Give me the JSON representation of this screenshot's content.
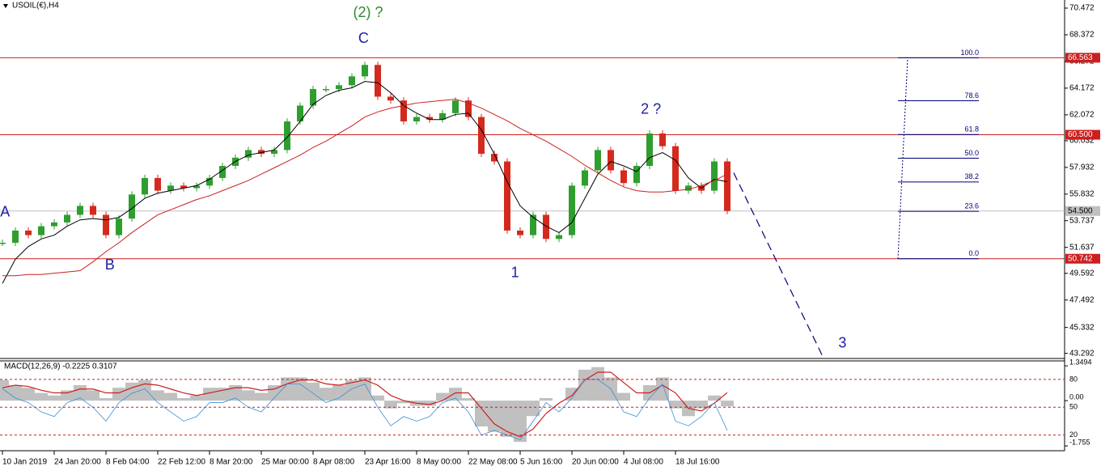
{
  "chart_data": [
    {
      "type": "line",
      "title": "USOIL(€),H4",
      "categories": [
        "10 Jan 2019",
        null,
        null,
        null,
        "24 Jan 20:00",
        null,
        null,
        null,
        "8 Feb 04:00",
        null,
        null,
        null,
        "22 Feb 12:00",
        null,
        null,
        null,
        "8 Mar 20:00",
        null,
        null,
        null,
        "25 Mar 00:00",
        null,
        null,
        null,
        "8 Apr 08:00",
        null,
        null,
        null,
        "23 Apr 16:00",
        null,
        null,
        null,
        "8 May 00:00",
        null,
        null,
        null,
        "22 May 08:00",
        null,
        null,
        null,
        "5 Jun 16:00",
        null,
        null,
        null,
        "20 Jun 00:00",
        null,
        null,
        null,
        "4 Jul 08:00",
        null,
        null,
        null,
        "18 Jul 16:00",
        null,
        null,
        null,
        null
      ],
      "series": [
        {
          "style": "candles",
          "color": "#2f9e2f",
          "down_color": "#d42a1e",
          "values": [
            52.0,
            52.96,
            52.6,
            53.3,
            53.6,
            54.2,
            54.9,
            54.2,
            52.6,
            53.9,
            55.8,
            57.1,
            56.1,
            56.5,
            56.3,
            56.5,
            57.1,
            58.05,
            58.7,
            59.3,
            59.0,
            59.3,
            61.55,
            62.8,
            64.1,
            64.1,
            64.4,
            65.1,
            66.0,
            63.5,
            63.2,
            61.55,
            61.9,
            61.7,
            62.2,
            63.2,
            61.9,
            59.0,
            58.4,
            52.96,
            52.6,
            54.2,
            52.3,
            52.6,
            56.5,
            57.7,
            59.3,
            57.7,
            56.7,
            58.05,
            60.6,
            59.6,
            56.1,
            56.5,
            56.1,
            58.4,
            54.5
          ]
        },
        {
          "style": "line",
          "color": "#000000",
          "values": [
            48.8,
            50.7,
            51.7,
            52.3,
            52.6,
            53.3,
            53.8,
            53.9,
            53.8,
            54.0,
            54.7,
            55.5,
            55.9,
            56.1,
            56.3,
            56.5,
            57.0,
            57.7,
            58.4,
            58.9,
            59.1,
            59.3,
            60.3,
            61.55,
            62.9,
            63.6,
            64.0,
            64.2,
            64.7,
            64.6,
            63.8,
            62.8,
            62.2,
            61.7,
            61.7,
            62.1,
            62.2,
            60.9,
            59.0,
            56.8,
            54.9,
            54.0,
            53.3,
            52.8,
            53.6,
            55.5,
            57.4,
            58.4,
            58.05,
            57.6,
            58.7,
            59.1,
            58.5,
            57.1,
            56.3,
            57.0,
            56.8
          ]
        },
        {
          "style": "line",
          "color": "#cc1f1f",
          "values": [
            49.4,
            49.4,
            49.5,
            49.5,
            49.6,
            49.7,
            49.8,
            50.5,
            51.3,
            52.0,
            52.8,
            53.5,
            54.2,
            54.6,
            55.0,
            55.4,
            55.7,
            56.1,
            56.5,
            56.9,
            57.4,
            57.9,
            58.4,
            58.9,
            59.5,
            60.0,
            60.6,
            61.2,
            61.9,
            62.3,
            62.6,
            62.8,
            63.0,
            63.1,
            63.2,
            63.3,
            63.0,
            62.6,
            62.1,
            61.6,
            61.0,
            60.5,
            60.0,
            59.4,
            58.8,
            58.1,
            57.5,
            56.9,
            56.4,
            56.1,
            56.0,
            56.0,
            56.1,
            56.2,
            56.5,
            56.9,
            57.4
          ]
        }
      ],
      "ylim": [
        42.89,
        71.11
      ],
      "yticks": [
        70.472,
        68.372,
        66.272,
        64.172,
        62.072,
        60.032,
        57.932,
        55.832,
        53.737,
        51.637,
        49.592,
        47.492,
        45.332,
        43.292
      ],
      "levels": [
        {
          "value": 66.563,
          "color": "#cc1f1f",
          "label_color": "#ffffff"
        },
        {
          "value": {
            "value": 60.5,
            "label": "60.500"
          },
          "color": "#cc1f1f",
          "label_color": "#ffffff"
        },
        {
          "value": {
            "value": 54.5,
            "label": "54.500"
          },
          "color": "#c0c0c0",
          "label_color": "#000000"
        },
        {
          "value": 50.742,
          "color": "#cc1f1f",
          "label_color": "#ffffff"
        }
      ],
      "fibonacci": {
        "from": 50.742,
        "to": 66.563,
        "color": "#00007a",
        "levels": [
          {
            "value": 100,
            "label": "100.0"
          },
          78.6,
          61.8,
          {
            "value": 50,
            "label": "50.0"
          },
          38.2,
          23.6,
          {
            "value": 0,
            "label": "0.0"
          }
        ]
      },
      "trendline": {
        "x": [
          56.5,
          63.4
        ],
        "values": [
          57.5,
          43.0
        ],
        "color": "#00007a"
      },
      "annotations": [
        {
          "text": "(2) ?",
          "x": 28.25,
          "y": 70.09,
          "color": "#2e8b2e"
        },
        {
          "text": "C",
          "x": 27.9,
          "y": 68.05,
          "color": "#1c1ca8"
        },
        {
          "text": "A",
          "x": 0.2,
          "y": 54.36,
          "color": "#1c1ca8"
        },
        {
          "text": "B",
          "x": 8.3,
          "y": 50.2,
          "color": "#1c1ca8"
        },
        {
          "text": "1",
          "x": 39.6,
          "y": 49.58,
          "color": "#1c1ca8"
        },
        {
          "text": "2 ?",
          "x": 50.1,
          "y": 62.45,
          "color": "#1c1ca8"
        },
        {
          "text": "3",
          "x": 64.9,
          "y": 44.04,
          "color": "#1c1ca8"
        }
      ]
    },
    {
      "type": "bar",
      "title": "MACD(12,26,9) -0.2225 0.3107",
      "series": [
        {
          "style": "bars",
          "color": "#c0c0c0",
          "values": [
            0.8,
            0.6,
            0.5,
            0.3,
            0.2,
            0.4,
            0.6,
            0.4,
            0.1,
            0.5,
            0.7,
            0.8,
            0.4,
            0.3,
            0.1,
            0.2,
            0.5,
            0.5,
            0.6,
            0.4,
            0.3,
            0.6,
            0.9,
            0.9,
            0.7,
            0.5,
            0.6,
            0.8,
            0.9,
            0.2,
            -0.3,
            -0.1,
            -0.2,
            -0.2,
            0.3,
            0.5,
            0.1,
            -1.0,
            -1.2,
            -1.4,
            -1.6,
            -0.6,
            0.1,
            0.0,
            0.5,
            1.2,
            1.3,
            0.9,
            0.3,
            0.0,
            0.6,
            0.9,
            -0.3,
            -0.6,
            -0.3,
            0.2,
            -0.2225
          ]
        },
        {
          "style": "line",
          "color": "#cc1f1f",
          "values": [
            0.5,
            0.6,
            0.55,
            0.4,
            0.3,
            0.3,
            0.45,
            0.45,
            0.3,
            0.3,
            0.5,
            0.65,
            0.6,
            0.45,
            0.3,
            0.2,
            0.3,
            0.4,
            0.5,
            0.5,
            0.4,
            0.45,
            0.65,
            0.8,
            0.8,
            0.65,
            0.6,
            0.7,
            0.8,
            0.6,
            0.2,
            0.0,
            -0.1,
            -0.15,
            0.0,
            0.3,
            0.3,
            -0.3,
            -0.9,
            -1.2,
            -1.4,
            -1.1,
            -0.5,
            -0.1,
            0.2,
            0.8,
            1.1,
            1.1,
            0.7,
            0.3,
            0.3,
            0.6,
            0.3,
            -0.3,
            -0.4,
            -0.1,
            0.3107
          ]
        },
        {
          "style": "line",
          "axis": "y2",
          "color": "#3a8fd9",
          "values": [
            70,
            60,
            55,
            45,
            40,
            55,
            60,
            50,
            35,
            55,
            65,
            70,
            55,
            45,
            35,
            40,
            55,
            55,
            60,
            50,
            45,
            60,
            75,
            75,
            65,
            55,
            60,
            70,
            75,
            50,
            30,
            40,
            35,
            40,
            55,
            60,
            45,
            20,
            25,
            20,
            15,
            35,
            55,
            45,
            60,
            80,
            80,
            70,
            45,
            40,
            60,
            75,
            35,
            30,
            40,
            55,
            25
          ]
        }
      ],
      "ylim": [
        -1.91,
        1.54
      ],
      "yticks": [
        1.3494,
        {
          "value": 0,
          "label": "0.00"
        },
        -1.755
      ],
      "y2lim": [
        4,
        100
      ],
      "y2ticks": [
        80,
        50,
        20
      ]
    }
  ]
}
